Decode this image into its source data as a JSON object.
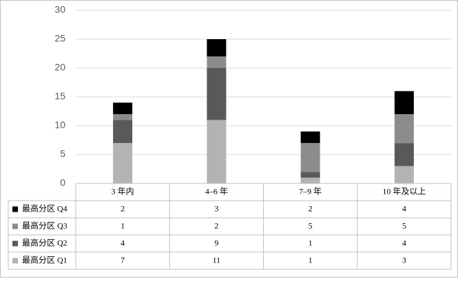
{
  "chart_data": {
    "type": "stacked_bar",
    "categories": [
      "3 年内",
      "4–6 年",
      "7–9 年",
      "10 年及以上"
    ],
    "series": [
      {
        "name": "最高分区 Q1",
        "color": "#b3b3b3",
        "values": [
          7,
          11,
          1,
          3
        ]
      },
      {
        "name": "最高分区 Q2",
        "color": "#595959",
        "values": [
          4,
          9,
          1,
          4
        ]
      },
      {
        "name": "最高分区 Q3",
        "color": "#8c8c8c",
        "values": [
          1,
          2,
          5,
          5
        ]
      },
      {
        "name": "最高分区 Q4",
        "color": "#000000",
        "values": [
          2,
          3,
          2,
          4
        ]
      }
    ],
    "ylim": [
      0,
      30
    ],
    "yticks": [
      0,
      5,
      10,
      15,
      20,
      25,
      30
    ],
    "grid": true
  }
}
